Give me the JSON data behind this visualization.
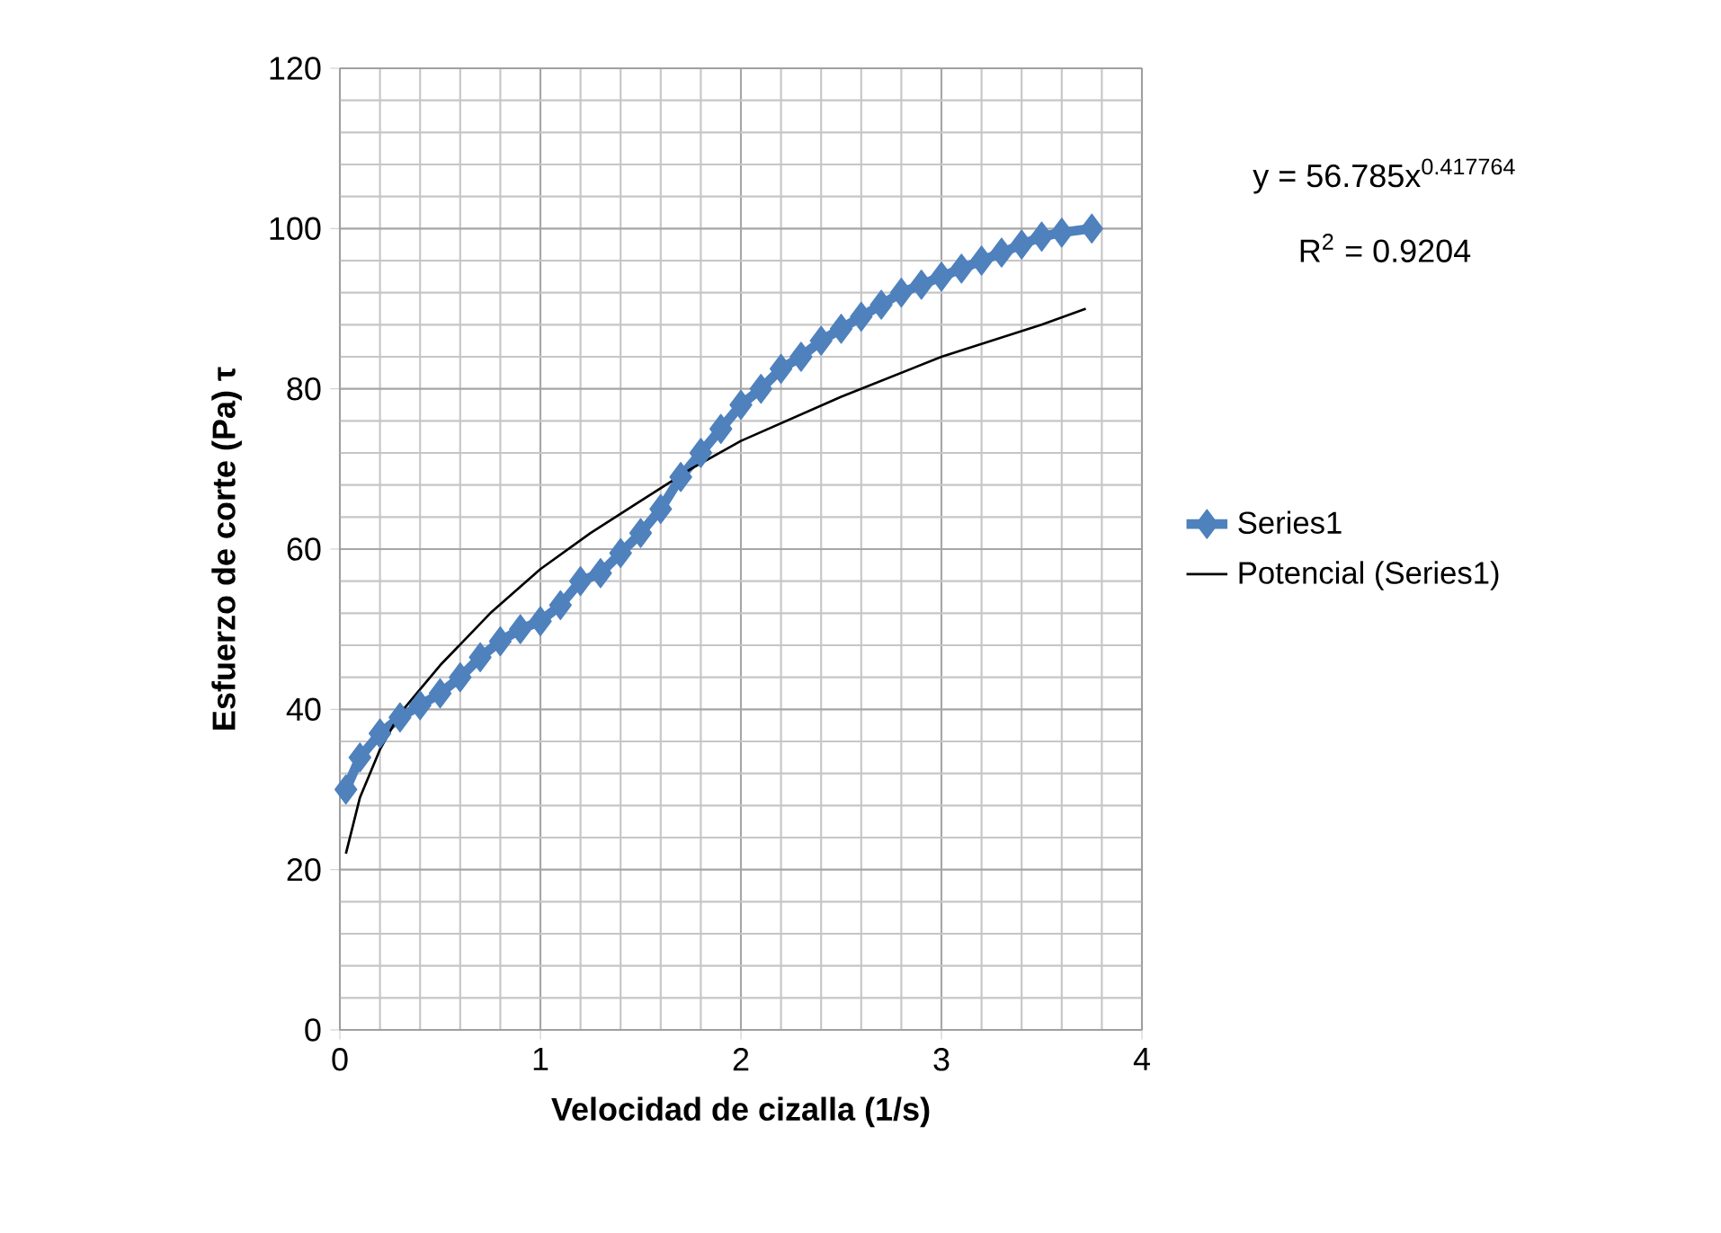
{
  "chart_data": {
    "type": "line",
    "xlabel": "Velocidad de cizalla (1/s)",
    "ylabel": "Esfuerzo de corte (Pa) τ",
    "xlim": [
      0,
      4
    ],
    "xticks": [
      0,
      1,
      2,
      3,
      4
    ],
    "ylim": [
      0,
      120
    ],
    "yticks": [
      0,
      20,
      40,
      60,
      80,
      100,
      120
    ],
    "grid": true,
    "legend": "right",
    "annotations": [
      "y = 56.785x$^{0.417764}$",
      "R$^{2}$ = 0.9204"
    ],
    "series": [
      {
        "name": "Series1",
        "color": "#4f81bd",
        "marker": "diamond",
        "x": [
          0.03,
          0.1,
          0.2,
          0.3,
          0.4,
          0.5,
          0.6,
          0.7,
          0.8,
          0.9,
          1.0,
          1.1,
          1.2,
          1.3,
          1.4,
          1.5,
          1.6,
          1.7,
          1.8,
          1.9,
          2.0,
          2.1,
          2.2,
          2.3,
          2.4,
          2.5,
          2.6,
          2.7,
          2.8,
          2.9,
          3.0,
          3.1,
          3.2,
          3.3,
          3.4,
          3.5,
          3.6,
          3.75
        ],
        "values": [
          30,
          34,
          37,
          39,
          40.5,
          42,
          44,
          46.5,
          48.5,
          50,
          51,
          53,
          56,
          57,
          59.5,
          62,
          65,
          69,
          72,
          75,
          78,
          80,
          82.5,
          84,
          86,
          87.5,
          89,
          90.5,
          92,
          93,
          94,
          95,
          96,
          97,
          98,
          99,
          99.5,
          100
        ]
      },
      {
        "name": "Potencial (Series1)",
        "color": "#000000",
        "marker": "none",
        "x": [
          0.03,
          0.1,
          0.2,
          0.3,
          0.5,
          0.75,
          1.0,
          1.25,
          1.5,
          1.75,
          2.0,
          2.5,
          3.0,
          3.5,
          3.72
        ],
        "values": [
          22,
          29,
          35,
          39.5,
          45.5,
          52,
          57.5,
          62,
          66,
          70,
          73.5,
          79,
          84,
          88,
          90
        ]
      }
    ]
  }
}
